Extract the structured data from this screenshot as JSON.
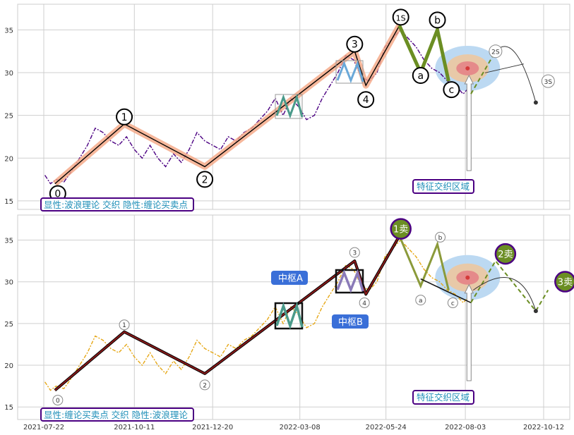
{
  "chart_data": [
    {
      "type": "line",
      "panel": "top",
      "ylim": [
        14,
        38
      ],
      "yticks": [
        15,
        20,
        25,
        30,
        35
      ],
      "grid": true,
      "colors": {
        "price": "#4b0082",
        "wave": "#000000",
        "wave_glow": "#f4a582",
        "ab": "#6b8e23",
        "forecast": "#6b8e23"
      },
      "price": {
        "x": [
          "2021-07-23",
          "2021-07-28",
          "2021-08-02",
          "2021-08-09",
          "2021-08-16",
          "2021-08-23",
          "2021-08-30",
          "2021-09-06",
          "2021-09-13",
          "2021-09-20",
          "2021-09-27",
          "2021-10-04",
          "2021-10-11",
          "2021-10-18",
          "2021-10-25",
          "2021-11-01",
          "2021-11-08",
          "2021-11-15",
          "2021-11-22",
          "2021-11-29",
          "2021-12-06",
          "2021-12-13",
          "2021-12-20",
          "2021-12-27",
          "2022-01-03",
          "2022-01-10",
          "2022-01-17",
          "2022-01-24",
          "2022-01-31",
          "2022-02-07",
          "2022-02-14",
          "2022-02-21",
          "2022-02-28",
          "2022-03-07",
          "2022-03-14",
          "2022-03-21",
          "2022-03-28",
          "2022-04-04",
          "2022-04-11",
          "2022-04-18",
          "2022-04-25",
          "2022-05-02",
          "2022-05-09",
          "2022-05-16",
          "2022-05-23",
          "2022-05-30",
          "2022-06-06",
          "2022-06-13",
          "2022-06-20",
          "2022-06-27",
          "2022-07-04",
          "2022-07-11",
          "2022-07-18",
          "2022-07-25",
          "2022-08-01",
          "2022-08-08"
        ],
        "y": [
          18.0,
          17.0,
          17.5,
          17.2,
          18.5,
          20.0,
          21.5,
          23.5,
          23.0,
          22.0,
          21.5,
          22.5,
          21.0,
          20.0,
          21.5,
          20.0,
          19.0,
          20.5,
          19.5,
          21.0,
          23.0,
          22.0,
          21.5,
          21.0,
          22.5,
          22.0,
          23.0,
          23.5,
          24.5,
          25.5,
          27.0,
          25.0,
          27.0,
          26.0,
          24.5,
          25.0,
          27.0,
          28.5,
          30.0,
          32.0,
          31.5,
          29.5,
          29.0,
          30.0,
          33.0,
          34.0,
          35.0,
          34.0,
          33.0,
          31.5,
          30.5,
          30.0,
          29.0,
          28.5,
          27.5,
          28.5
        ]
      },
      "wave_points": [
        {
          "label": "0",
          "x": "2021-08-01",
          "y": 17.0
        },
        {
          "label": "1",
          "x": "2021-10-02",
          "y": 24.0
        },
        {
          "label": "2",
          "x": "2021-12-13",
          "y": 19.0
        },
        {
          "label": "3",
          "x": "2022-04-26",
          "y": 32.5
        },
        {
          "label": "4",
          "x": "2022-05-06",
          "y": 28.5
        },
        {
          "label": "1S",
          "x": "2022-06-05",
          "y": 35.5
        }
      ],
      "abc_points": [
        {
          "label": "1S",
          "x": "2022-06-05",
          "y": 35.5
        },
        {
          "label": "a",
          "x": "2022-06-24",
          "y": 30.0
        },
        {
          "label": "b",
          "x": "2022-07-09",
          "y": 35.0
        },
        {
          "label": "c",
          "x": "2022-07-19",
          "y": 29.0
        }
      ],
      "forecast_points": [
        {
          "label": "",
          "x": "2022-08-08",
          "y": 27.5
        },
        {
          "label": "2S",
          "x": "2022-08-30",
          "y": 32.5
        },
        {
          "label": "",
          "x": "2022-10-05",
          "y": 26.5
        },
        {
          "label": "3S",
          "x": "2022-10-16",
          "y": 29.0
        }
      ],
      "annotations": {
        "legend_text": "显性:波浪理论 交织 隐性:缠论买卖点",
        "zone_label": "特征交织区域"
      }
    },
    {
      "type": "line",
      "panel": "bottom",
      "ylim": [
        13.5,
        38
      ],
      "yticks": [
        15,
        20,
        25,
        30,
        35
      ],
      "grid": true,
      "colors": {
        "price": "#e6a817",
        "stroke": "#000000",
        "stroke_fill": "#8b1a1a",
        "abc": "#8b9a3a",
        "zhongshu": "#3a6fd8",
        "sell": "#6b8e23"
      },
      "price": {
        "x": [
          "2021-07-23",
          "2021-07-28",
          "2021-08-02",
          "2021-08-09",
          "2021-08-16",
          "2021-08-23",
          "2021-08-30",
          "2021-09-06",
          "2021-09-13",
          "2021-09-20",
          "2021-09-27",
          "2021-10-04",
          "2021-10-11",
          "2021-10-18",
          "2021-10-25",
          "2021-11-01",
          "2021-11-08",
          "2021-11-15",
          "2021-11-22",
          "2021-11-29",
          "2021-12-06",
          "2021-12-13",
          "2021-12-20",
          "2021-12-27",
          "2022-01-03",
          "2022-01-10",
          "2022-01-17",
          "2022-01-24",
          "2022-01-31",
          "2022-02-07",
          "2022-02-14",
          "2022-02-21",
          "2022-02-28",
          "2022-03-07",
          "2022-03-14",
          "2022-03-21",
          "2022-03-28",
          "2022-04-04",
          "2022-04-11",
          "2022-04-18",
          "2022-04-25",
          "2022-05-02",
          "2022-05-09",
          "2022-05-16",
          "2022-05-23",
          "2022-05-30",
          "2022-06-06",
          "2022-06-13",
          "2022-06-20",
          "2022-06-27",
          "2022-07-04",
          "2022-07-11",
          "2022-07-18",
          "2022-07-25",
          "2022-08-01",
          "2022-08-08"
        ],
        "y": [
          18.0,
          17.0,
          17.5,
          17.2,
          18.5,
          20.0,
          21.5,
          23.5,
          23.0,
          22.0,
          21.5,
          22.5,
          21.0,
          20.0,
          21.5,
          20.0,
          19.0,
          20.5,
          19.5,
          21.0,
          23.0,
          22.0,
          21.5,
          21.0,
          22.5,
          22.0,
          23.0,
          23.5,
          24.5,
          25.5,
          27.0,
          25.0,
          27.0,
          26.0,
          24.5,
          25.0,
          27.0,
          28.5,
          30.0,
          32.0,
          31.5,
          29.5,
          29.0,
          30.0,
          33.0,
          34.0,
          35.0,
          34.0,
          33.0,
          31.5,
          30.5,
          30.0,
          29.0,
          28.5,
          27.5,
          28.5
        ]
      },
      "stroke_points": [
        {
          "label": "0",
          "x": "2021-08-01",
          "y": 17.0
        },
        {
          "label": "1",
          "x": "2021-10-02",
          "y": 24.0
        },
        {
          "label": "2",
          "x": "2021-12-13",
          "y": 19.0
        },
        {
          "label": "3",
          "x": "2022-04-26",
          "y": 32.5
        },
        {
          "label": "4",
          "x": "2022-05-06",
          "y": 28.5
        },
        {
          "label": "1卖",
          "x": "2022-06-05",
          "y": 35.5
        }
      ],
      "abc_points": [
        {
          "label": "a",
          "x": "2022-06-24",
          "y": 29.5
        },
        {
          "label": "b",
          "x": "2022-07-09",
          "y": 34.5
        },
        {
          "label": "c",
          "x": "2022-07-19",
          "y": 29.0
        }
      ],
      "sell_points": [
        {
          "label": "1卖",
          "x": "2022-06-05",
          "y": 35.5
        },
        {
          "label": "2卖",
          "x": "2022-08-30",
          "y": 32.5
        },
        {
          "label": "3卖",
          "x": "2022-10-16",
          "y": 29.0
        }
      ],
      "annotations": {
        "zhongshu_a": "中枢A",
        "zhongshu_b": "中枢B",
        "legend_text": "显性:缠论买卖点 交织 隐性:波浪理论",
        "zone_label": "特征交织区域"
      },
      "x_ticks": [
        "2021-07-22",
        "2021-10-11",
        "2021-12-20",
        "2022-03-08",
        "2022-05-24",
        "2022-08-03",
        "2022-10-12"
      ]
    }
  ]
}
